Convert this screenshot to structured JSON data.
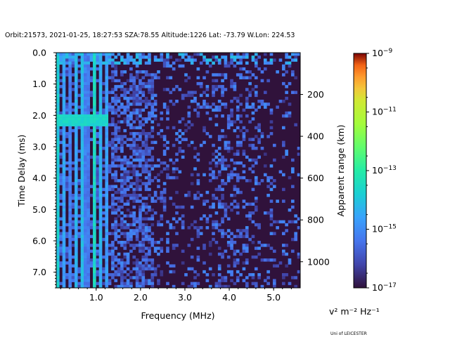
{
  "title": "Orbit:21573, 2021-01-25, 18:27:53 SZA:78.55 Altitude:1226 Lat: -73.79 W.Lon: 224.53",
  "credit": "Uni of LEICESTER",
  "colorbar_unit": "v² m⁻² Hz⁻¹",
  "chart_data": {
    "type": "heatmap",
    "title": "Orbit:21573, 2021-01-25, 18:27:53 SZA:78.55 Altitude:1226 Lat: -73.79 W.Lon: 224.53",
    "xlabel": "Frequency (MHz)",
    "ylabel": "Time Delay (ms)",
    "ylabel_right": "Apparent range (km)",
    "xlim": [
      0.1,
      5.6
    ],
    "ylim": [
      7.5,
      0.0
    ],
    "x_ticks": [
      {
        "value": 1.0,
        "label": "1.0"
      },
      {
        "value": 2.0,
        "label": "2.0"
      },
      {
        "value": 3.0,
        "label": "3.0"
      },
      {
        "value": 4.0,
        "label": "4.0"
      },
      {
        "value": 5.0,
        "label": "5.0"
      }
    ],
    "y_ticks": [
      {
        "value": 0.0,
        "label": "0.0"
      },
      {
        "value": 1.0,
        "label": "1.0"
      },
      {
        "value": 2.0,
        "label": "2.0"
      },
      {
        "value": 3.0,
        "label": "3.0"
      },
      {
        "value": 4.0,
        "label": "4.0"
      },
      {
        "value": 5.0,
        "label": "5.0"
      },
      {
        "value": 6.0,
        "label": "6.0"
      },
      {
        "value": 7.0,
        "label": "7.0"
      }
    ],
    "right_ticks": [
      {
        "value": 200,
        "label": "200"
      },
      {
        "value": 400,
        "label": "400"
      },
      {
        "value": 600,
        "label": "600"
      },
      {
        "value": 800,
        "label": "800"
      },
      {
        "value": 1000,
        "label": "1000"
      }
    ],
    "colorbar": {
      "scale": "log",
      "range": [
        1e-17,
        1e-09
      ],
      "ticks": [
        {
          "exponent": -9,
          "label": "10",
          "sup": "−9"
        },
        {
          "exponent": -11,
          "label": "10",
          "sup": "−11"
        },
        {
          "exponent": -13,
          "label": "10",
          "sup": "−13"
        },
        {
          "exponent": -15,
          "label": "10",
          "sup": "−15"
        },
        {
          "exponent": -17,
          "label": "10",
          "sup": "−17"
        }
      ]
    },
    "grid": false,
    "frequency_bins": 80,
    "delay_bins": 80,
    "background_log10": -17,
    "features": [
      {
        "kind": "interference_lines",
        "freq_range": [
          0.1,
          1.3
        ],
        "log10_range": [
          -15.5,
          -13.5
        ]
      },
      {
        "kind": "bright_band",
        "delay_range": [
          1.95,
          2.25
        ],
        "freq_range": [
          0.1,
          1.25
        ],
        "log10": -13.6
      },
      {
        "kind": "noise_band",
        "delay_range": [
          0.0,
          0.35
        ],
        "freq_range": [
          0.1,
          5.6
        ],
        "log10": -14.6
      },
      {
        "kind": "scatter_noise",
        "freq_range": [
          1.3,
          5.6
        ],
        "log10_range": [
          -16.5,
          -15.0
        ]
      },
      {
        "kind": "dense_patch",
        "freq_range": [
          1.3,
          2.3
        ],
        "delay_range": [
          0.5,
          7.5
        ],
        "log10": -15.4
      }
    ]
  }
}
